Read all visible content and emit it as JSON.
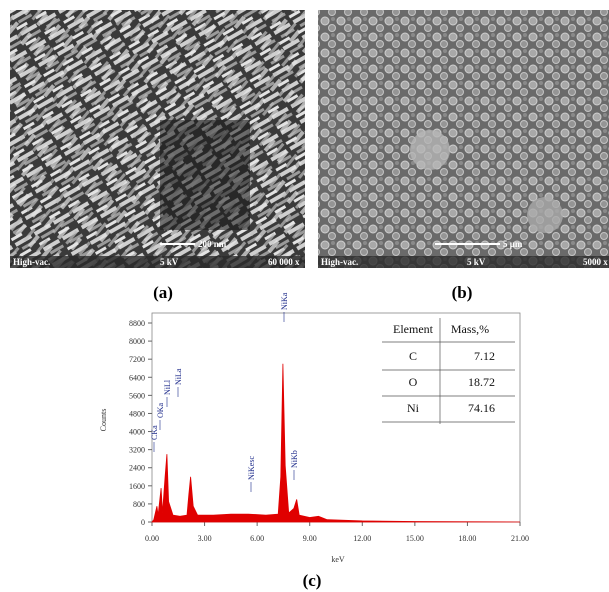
{
  "figure": {
    "panels": [
      {
        "caption": "(a)",
        "info": [
          "High-vac.",
          "5 kV",
          "60 000 x"
        ],
        "scale_bar": "200 nm"
      },
      {
        "caption": "(b)",
        "info": [
          "High-vac.",
          "5 kV",
          "5000 x"
        ],
        "scale_bar": "5 μm"
      }
    ],
    "chart_caption": "(c)"
  },
  "chart_data": {
    "type": "area",
    "color": "#e00000",
    "x_label": "keV",
    "y_label": "Counts",
    "x": [
      0,
      0.1,
      0.28,
      0.35,
      0.52,
      0.6,
      0.75,
      0.85,
      0.95,
      1.2,
      1.6,
      2.0,
      2.1,
      2.2,
      2.35,
      2.6,
      3.5,
      4.5,
      5.5,
      6.5,
      7.2,
      7.35,
      7.47,
      7.6,
      7.8,
      8.1,
      8.26,
      8.4,
      9.0,
      9.5,
      10,
      12,
      15,
      21
    ],
    "values": [
      0,
      100,
      700,
      300,
      1500,
      400,
      2000,
      3000,
      900,
      300,
      250,
      300,
      1200,
      2000,
      700,
      300,
      300,
      350,
      350,
      300,
      350,
      2000,
      7000,
      2500,
      400,
      600,
      1000,
      300,
      200,
      250,
      100,
      50,
      20,
      0
    ],
    "xlim": [
      0,
      21
    ],
    "xticks": [
      {
        "value": 0,
        "label": "0.00"
      },
      {
        "value": 3,
        "label": "3.00"
      },
      {
        "value": 6,
        "label": "6.00"
      },
      {
        "value": 9,
        "label": "9.00"
      },
      {
        "value": 12,
        "label": "12.00"
      },
      {
        "value": 15,
        "label": "15.00"
      },
      {
        "value": 18,
        "label": "18.00"
      },
      {
        "value": 21,
        "label": "21.00"
      }
    ],
    "ylim": [
      0,
      8800
    ],
    "yticks": [
      0,
      800,
      1600,
      2400,
      3200,
      4000,
      4800,
      5600,
      6400,
      7200,
      8000,
      8800
    ],
    "annotations": [
      "CKa",
      "OKa",
      "NiLl",
      "NiLa",
      "NiKesc",
      "NiKa",
      "NiKb"
    ],
    "table": {
      "header": [
        "Element",
        "Mass,%"
      ],
      "rows": [
        [
          "C",
          "7.12"
        ],
        [
          "O",
          "18.72"
        ],
        [
          "Ni",
          "74.16"
        ]
      ]
    }
  }
}
